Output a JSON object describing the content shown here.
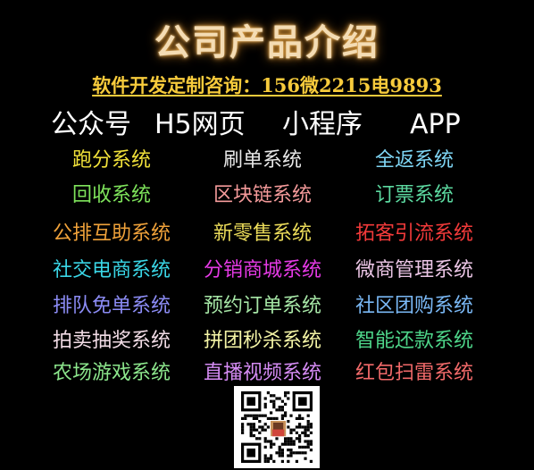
{
  "header": {
    "title": "公司产品介绍",
    "contact": "软件开发定制咨询：156微2215电9893"
  },
  "platforms": [
    "公众号",
    "H5网页",
    "小程序",
    "APP"
  ],
  "rows": [
    [
      {
        "label": "跑分系统",
        "color": "#f2e23a"
      },
      {
        "label": "刷单系统",
        "color": "#e8e8e8"
      },
      {
        "label": "全返系统",
        "color": "#7fd6f5"
      }
    ],
    [
      {
        "label": "回收系统",
        "color": "#7ee35b"
      },
      {
        "label": "区块链系统",
        "color": "#f49a9a"
      },
      {
        "label": "订票系统",
        "color": "#5cd9a0"
      }
    ],
    [
      {
        "label": "公排互助系统",
        "color": "#f0a23a"
      },
      {
        "label": "新零售系统",
        "color": "#ecdc5a"
      },
      {
        "label": "拓客引流系统",
        "color": "#f23a3a"
      }
    ],
    [
      {
        "label": "社交电商系统",
        "color": "#3ad6e6"
      },
      {
        "label": "分销商城系统",
        "color": "#e63ae6"
      },
      {
        "label": "微商管理系统",
        "color": "#ecc6e6"
      }
    ],
    [
      {
        "label": "排队免单系统",
        "color": "#8c8cf5"
      },
      {
        "label": "预约订单系统",
        "color": "#a6e6a6"
      },
      {
        "label": "社区团购系统",
        "color": "#7ab8f5"
      }
    ],
    [
      {
        "label": "拍卖抽奖系统",
        "color": "#f2dce6"
      },
      {
        "label": "拼团秒杀系统",
        "color": "#f5f5a6"
      },
      {
        "label": "智能还款系统",
        "color": "#4ed68a"
      }
    ],
    [
      {
        "label": "农场游戏系统",
        "color": "#8ce68c"
      },
      {
        "label": "直播视频系统",
        "color": "#d68cf5"
      },
      {
        "label": "红包扫雷系统",
        "color": "#f26a6a"
      }
    ]
  ],
  "qr_code": {
    "icon": "qr-code-icon"
  }
}
